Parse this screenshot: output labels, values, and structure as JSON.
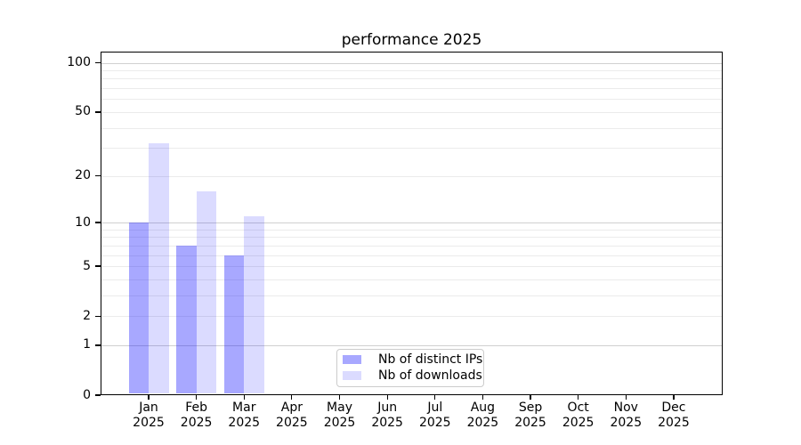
{
  "chart_data": {
    "type": "bar",
    "title": "performance 2025",
    "categories": [
      "Jan",
      "Feb",
      "Mar",
      "Apr",
      "May",
      "Jun",
      "Jul",
      "Aug",
      "Sep",
      "Oct",
      "Nov",
      "Dec"
    ],
    "category_year": "2025",
    "series": [
      {
        "name": "Nb of distinct IPs",
        "color": "rgba(0,0,255,0.34)",
        "values": [
          10,
          7,
          6,
          0,
          0,
          0,
          0,
          0,
          0,
          0,
          0,
          0
        ]
      },
      {
        "name": "Nb of downloads",
        "color": "rgba(0,0,255,0.14)",
        "values": [
          32,
          16,
          11,
          0,
          0,
          0,
          0,
          0,
          0,
          0,
          0,
          0
        ]
      }
    ],
    "yscale": "log1p",
    "ylim": [
      0,
      118
    ],
    "yticks": [
      0,
      1,
      2,
      5,
      10,
      20,
      50,
      100
    ],
    "major_gridlines": [
      1,
      10,
      100
    ],
    "minor_gridlines": [
      2,
      3,
      4,
      5,
      6,
      7,
      8,
      9,
      20,
      30,
      40,
      50,
      60,
      70,
      80,
      90
    ],
    "grid_color_major": "#d0d0d0",
    "grid_color_minor": "#ebebeb",
    "legend_position": "lower center",
    "xlabel": "",
    "ylabel": ""
  }
}
